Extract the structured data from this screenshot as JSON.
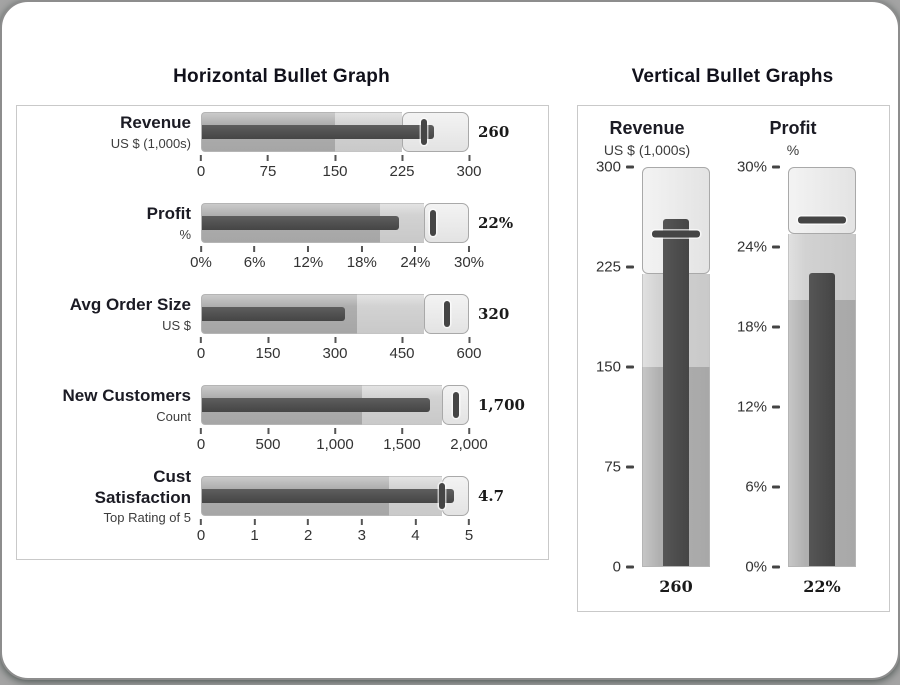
{
  "colors": {
    "measure_bar": "#4d4d4d",
    "band_low": "#adadad",
    "band_mid": "#d0d0d0",
    "band_high": "#e9e9e9",
    "axis_text": "#333333",
    "title_text": "#11111b"
  },
  "chart_data": [
    {
      "type": "bullet-horizontal",
      "title": "Horizontal Bullet Graph",
      "rows": [
        {
          "label": "Revenue",
          "sublabel": "US $ (1,000s)",
          "value": 260,
          "value_label": "260",
          "target": 250,
          "range": [
            0,
            300
          ],
          "bands": [
            150,
            225,
            300
          ],
          "ticks": [
            "0",
            "75",
            "150",
            "225",
            "300"
          ]
        },
        {
          "label": "Profit",
          "sublabel": "%",
          "value": 22,
          "value_label": "22%",
          "target": 26,
          "range": [
            0,
            30
          ],
          "bands": [
            20,
            25,
            30
          ],
          "ticks": [
            "0%",
            "6%",
            "12%",
            "18%",
            "24%",
            "30%"
          ]
        },
        {
          "label": "Avg Order Size",
          "sublabel": "US $",
          "value": 320,
          "value_label": "320",
          "target": 550,
          "range": [
            0,
            600
          ],
          "bands": [
            350,
            500,
            600
          ],
          "ticks": [
            "0",
            "150",
            "300",
            "450",
            "600"
          ]
        },
        {
          "label": "New Customers",
          "sublabel": "Count",
          "value": 1700,
          "value_label": "1,700",
          "target": 1900,
          "range": [
            0,
            2000
          ],
          "bands": [
            1200,
            1800,
            2000
          ],
          "ticks": [
            "0",
            "500",
            "1,000",
            "1,500",
            "2,000"
          ]
        },
        {
          "label": "Cust\nSatisfaction",
          "sublabel": "Top Rating of 5",
          "value": 4.7,
          "value_label": "4.7",
          "target": 4.5,
          "range": [
            0,
            5
          ],
          "bands": [
            3.5,
            4.5,
            5
          ],
          "ticks": [
            "0",
            "1",
            "2",
            "3",
            "4",
            "5"
          ]
        }
      ]
    },
    {
      "type": "bullet-vertical",
      "title": "Vertical Bullet Graphs",
      "columns": [
        {
          "label": "Revenue",
          "sublabel": "US $ (1,000s)",
          "value": 260,
          "value_label": "260",
          "target": 250,
          "range": [
            0,
            300
          ],
          "bands": [
            150,
            220,
            300
          ],
          "ticks": [
            "300",
            "225",
            "150",
            "75",
            "0"
          ]
        },
        {
          "label": "Profit",
          "sublabel": "%",
          "value": 22,
          "value_label": "22%",
          "target": 26,
          "range": [
            0,
            30
          ],
          "bands": [
            20,
            25,
            30
          ],
          "ticks": [
            "30%",
            "24%",
            "18%",
            "12%",
            "6%",
            "0%"
          ]
        }
      ]
    }
  ]
}
